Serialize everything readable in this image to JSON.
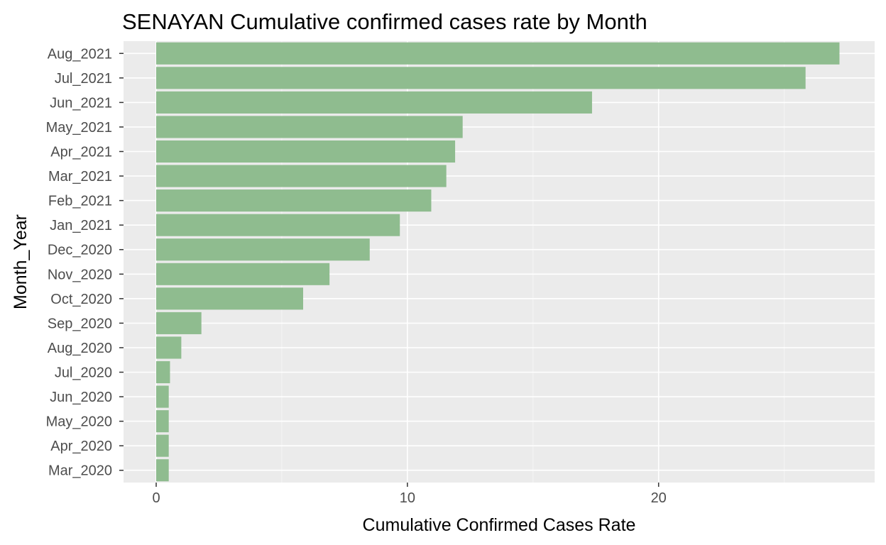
{
  "chart_data": {
    "type": "bar",
    "orientation": "horizontal",
    "title": "SENAYAN Cumulative confirmed cases rate by Month",
    "xlabel": "Cumulative Confirmed Cases Rate",
    "ylabel": "Month_Year",
    "xlim": [
      -1.3,
      28.6
    ],
    "x_ticks": [
      "0",
      "10",
      "20"
    ],
    "categories": [
      "Mar_2020",
      "Apr_2020",
      "May_2020",
      "Jun_2020",
      "Jul_2020",
      "Aug_2020",
      "Sep_2020",
      "Oct_2020",
      "Nov_2020",
      "Dec_2020",
      "Jan_2021",
      "Feb_2021",
      "Mar_2021",
      "Apr_2021",
      "May_2021",
      "Jun_2021",
      "Jul_2021",
      "Aug_2021"
    ],
    "values": [
      0.5,
      0.5,
      0.5,
      0.5,
      0.55,
      1.0,
      1.8,
      5.85,
      6.9,
      8.5,
      9.7,
      10.95,
      11.55,
      11.9,
      12.2,
      17.35,
      25.85,
      27.2
    ],
    "grid": true,
    "legend": "none",
    "colors": {
      "bar": "#8fbc8f",
      "panel": "#ebebeb",
      "grid_major": "#ffffff",
      "grid_minor": "#f5f5f5",
      "tick_text": "#4d4d4d",
      "tick_mark": "#333333"
    }
  }
}
